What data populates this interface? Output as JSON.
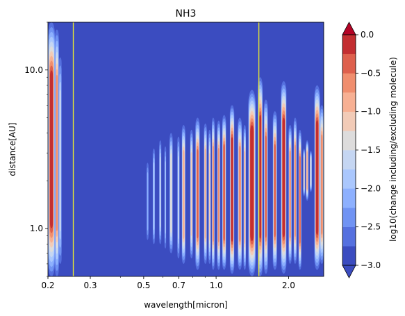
{
  "chart_data": {
    "type": "heatmap",
    "title": "NH3",
    "xlabel": "wavelength[micron]",
    "ylabel": "distance[AU]",
    "xscale": "log",
    "yscale": "log",
    "xlim": [
      0.2,
      2.8
    ],
    "ylim": [
      0.5,
      20
    ],
    "x_ticks": [
      {
        "value": 0.2,
        "label": "0.2"
      },
      {
        "value": 0.3,
        "label": "0.3"
      },
      {
        "value": 0.5,
        "label": "0.5"
      },
      {
        "value": 0.7,
        "label": "0.7"
      },
      {
        "value": 1.0,
        "label": "1.0"
      },
      {
        "value": 2.0,
        "label": "2.0"
      }
    ],
    "y_ticks": [
      {
        "value": 1.0,
        "label": "1.0"
      },
      {
        "value": 10.0,
        "label": "10.0"
      }
    ],
    "colorbar": {
      "label": "log10(change including/excluding molecule)",
      "min": -3.0,
      "max": 0.0,
      "levels": 12,
      "extend": "both",
      "ticks": [
        {
          "value": 0.0,
          "label": "0.0"
        },
        {
          "value": -0.5,
          "label": "−0.5"
        },
        {
          "value": -1.0,
          "label": "−1.0"
        },
        {
          "value": -1.5,
          "label": "−1.5"
        },
        {
          "value": -2.0,
          "label": "−2.0"
        },
        {
          "value": -2.5,
          "label": "−2.5"
        },
        {
          "value": -3.0,
          "label": "−3.0"
        }
      ],
      "colormap": "coolwarm",
      "colors": [
        "#3b4cc0",
        "#5570df",
        "#7093f3",
        "#8db0fe",
        "#aac7fd",
        "#c5d6f2",
        "#dddcdc",
        "#f2cbb7",
        "#f7b093",
        "#f08e6e",
        "#de604d",
        "#c32e31"
      ],
      "under_color": "#3b4cc0",
      "over_color": "#b40426"
    },
    "vlines": [
      {
        "x": 0.255,
        "color": "#e6e633"
      },
      {
        "x": 1.505,
        "color": "#e6e633"
      }
    ],
    "bands": [
      {
        "x0": 0.2,
        "x1": 0.214,
        "y0": 0.5,
        "y1": 20.0,
        "v": -0.05
      },
      {
        "x0": 0.214,
        "x1": 0.222,
        "y0": 0.5,
        "y1": 18.0,
        "v": -0.7
      },
      {
        "x0": 0.222,
        "x1": 0.228,
        "y0": 0.6,
        "y1": 12.0,
        "v": -1.6
      },
      {
        "x0": 0.514,
        "x1": 0.524,
        "y0": 0.85,
        "y1": 2.6,
        "v": -2.2
      },
      {
        "x0": 0.545,
        "x1": 0.557,
        "y0": 0.8,
        "y1": 3.2,
        "v": -1.9
      },
      {
        "x0": 0.58,
        "x1": 0.592,
        "y0": 0.8,
        "y1": 3.6,
        "v": -1.7
      },
      {
        "x0": 0.61,
        "x1": 0.62,
        "y0": 0.75,
        "y1": 3.3,
        "v": -1.9
      },
      {
        "x0": 0.64,
        "x1": 0.66,
        "y0": 0.7,
        "y1": 4.0,
        "v": -1.3
      },
      {
        "x0": 0.69,
        "x1": 0.705,
        "y0": 0.65,
        "y1": 3.8,
        "v": -1.6
      },
      {
        "x0": 0.72,
        "x1": 0.745,
        "y0": 0.6,
        "y1": 4.5,
        "v": -0.9
      },
      {
        "x0": 0.78,
        "x1": 0.8,
        "y0": 0.65,
        "y1": 4.2,
        "v": -1.2
      },
      {
        "x0": 0.82,
        "x1": 0.855,
        "y0": 0.55,
        "y1": 5.0,
        "v": -0.5
      },
      {
        "x0": 0.89,
        "x1": 0.915,
        "y0": 0.6,
        "y1": 4.6,
        "v": -0.9
      },
      {
        "x0": 0.93,
        "x1": 0.95,
        "y0": 0.6,
        "y1": 4.2,
        "v": -1.1
      },
      {
        "x0": 0.96,
        "x1": 0.985,
        "y0": 0.55,
        "y1": 5.0,
        "v": -0.6
      },
      {
        "x0": 1.01,
        "x1": 1.04,
        "y0": 0.55,
        "y1": 4.8,
        "v": -0.7
      },
      {
        "x0": 1.06,
        "x1": 1.1,
        "y0": 0.55,
        "y1": 5.2,
        "v": -0.4
      },
      {
        "x0": 1.14,
        "x1": 1.19,
        "y0": 0.52,
        "y1": 6.0,
        "v": -0.2
      },
      {
        "x0": 1.23,
        "x1": 1.28,
        "y0": 0.55,
        "y1": 5.0,
        "v": -0.6
      },
      {
        "x0": 1.3,
        "x1": 1.33,
        "y0": 0.55,
        "y1": 4.5,
        "v": -0.9
      },
      {
        "x0": 1.36,
        "x1": 1.46,
        "y0": 0.5,
        "y1": 7.5,
        "v": -0.1
      },
      {
        "x0": 1.49,
        "x1": 1.56,
        "y0": 0.5,
        "y1": 9.0,
        "v": -0.2
      },
      {
        "x0": 1.58,
        "x1": 1.64,
        "y0": 0.52,
        "y1": 6.5,
        "v": -0.5
      },
      {
        "x0": 1.72,
        "x1": 1.79,
        "y0": 0.55,
        "y1": 5.5,
        "v": -0.5
      },
      {
        "x0": 1.86,
        "x1": 1.96,
        "y0": 0.52,
        "y1": 8.5,
        "v": -0.1
      },
      {
        "x0": 2.0,
        "x1": 2.06,
        "y0": 0.6,
        "y1": 4.5,
        "v": -0.7
      },
      {
        "x0": 2.1,
        "x1": 2.16,
        "y0": 0.6,
        "y1": 5.0,
        "v": -0.6
      },
      {
        "x0": 2.2,
        "x1": 2.26,
        "y0": 0.55,
        "y1": 4.2,
        "v": -0.3
      },
      {
        "x0": 2.3,
        "x1": 2.34,
        "y0": 1.6,
        "y1": 3.2,
        "v": -1.2
      },
      {
        "x0": 2.36,
        "x1": 2.42,
        "y0": 1.5,
        "y1": 3.6,
        "v": -0.9
      },
      {
        "x0": 2.45,
        "x1": 2.5,
        "y0": 1.7,
        "y1": 3.1,
        "v": -1.3
      },
      {
        "x0": 2.56,
        "x1": 2.7,
        "y0": 0.55,
        "y1": 8.0,
        "v": -0.2
      },
      {
        "x0": 2.7,
        "x1": 2.8,
        "y0": 0.6,
        "y1": 6.0,
        "v": -0.6
      }
    ]
  }
}
